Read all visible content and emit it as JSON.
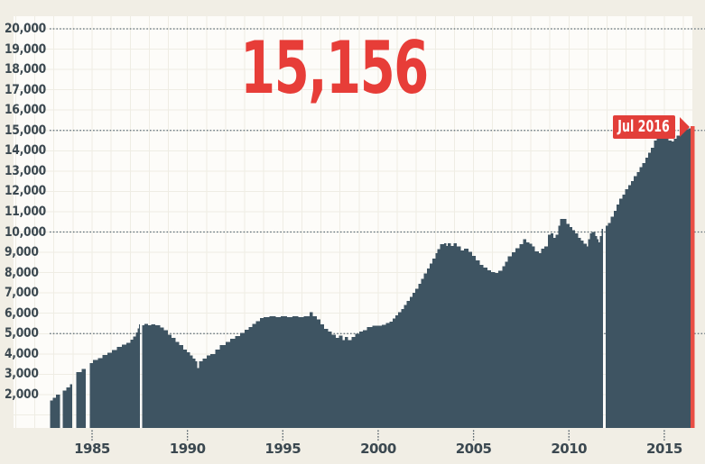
{
  "callout": {
    "value": "15,156",
    "period": "Jul 2016"
  },
  "colors": {
    "background": "#f1eee5",
    "plot_bg": "#fdfcf9",
    "grid": "#efede4",
    "dotted_line": "#5b6b75",
    "tick_dots": "#45535d",
    "axis_text": "#3b4850",
    "bar": "#3e5462",
    "red": "#e73d38",
    "box_red": "#e23e39",
    "red_line": "#e94e45"
  },
  "chart_data": {
    "type": "area",
    "title": "15,156",
    "annotation": "Jul 2016",
    "latest_value": 15156,
    "legend": "none",
    "grid": "on",
    "x_axis": {
      "range_years": [
        1981,
        2016.6
      ],
      "ticks": [
        {
          "year": 1985,
          "label": "1985"
        },
        {
          "year": 1990,
          "label": "1990"
        },
        {
          "year": 1995,
          "label": "1995"
        },
        {
          "year": 2000,
          "label": "2000"
        },
        {
          "year": 2005,
          "label": "2005"
        },
        {
          "year": 2010,
          "label": "2010"
        },
        {
          "year": 2015,
          "label": "2015"
        }
      ]
    },
    "y_axis": {
      "range": [
        0,
        20500
      ],
      "tick_step": 1000,
      "dotted_levels": [
        5000,
        10000,
        15000,
        20000
      ],
      "labels": [
        {
          "value": 2000,
          "label": "2,000"
        },
        {
          "value": 3000,
          "label": "3,000"
        },
        {
          "value": 4000,
          "label": "4,000"
        },
        {
          "value": 5000,
          "label": "5,000"
        },
        {
          "value": 6000,
          "label": "6,000"
        },
        {
          "value": 7000,
          "label": "7,000"
        },
        {
          "value": 8000,
          "label": "8,000"
        },
        {
          "value": 9000,
          "label": "9,000"
        },
        {
          "value": 10000,
          "label": "10,000"
        },
        {
          "value": 11000,
          "label": "11,000"
        },
        {
          "value": 12000,
          "label": "12,000"
        },
        {
          "value": 13000,
          "label": "13,000"
        },
        {
          "value": 14000,
          "label": "14,000"
        },
        {
          "value": 15000,
          "label": "15,000"
        },
        {
          "value": 16000,
          "label": "16,000"
        },
        {
          "value": 17000,
          "label": "17,000"
        },
        {
          "value": 18000,
          "label": "18,000"
        },
        {
          "value": 19000,
          "label": "19,000"
        },
        {
          "value": 20000,
          "label": "20,000"
        }
      ]
    },
    "series": [
      {
        "name": "index-level",
        "points": [
          [
            1982.8,
            1700
          ],
          [
            1982.95,
            1850
          ],
          [
            1983.1,
            2000
          ],
          [
            1983.31,
            null
          ],
          [
            1983.46,
            2200
          ],
          [
            1983.65,
            2350
          ],
          [
            1983.85,
            2500
          ],
          [
            1983.97,
            null
          ],
          [
            1984.16,
            3100
          ],
          [
            1984.45,
            3250
          ],
          [
            1984.68,
            null
          ],
          [
            1984.88,
            3550
          ],
          [
            1985.05,
            3700
          ],
          [
            1985.3,
            3800
          ],
          [
            1985.55,
            3950
          ],
          [
            1985.8,
            4050
          ],
          [
            1986.05,
            4200
          ],
          [
            1986.3,
            4350
          ],
          [
            1986.55,
            4450
          ],
          [
            1986.8,
            4550
          ],
          [
            1987.0,
            4700
          ],
          [
            1987.15,
            4850
          ],
          [
            1987.3,
            5050
          ],
          [
            1987.4,
            5250
          ],
          [
            1987.47,
            5450
          ],
          [
            1987.5,
            null
          ],
          [
            1987.62,
            5400
          ],
          [
            1987.75,
            5470
          ],
          [
            1987.9,
            5400
          ],
          [
            1988.1,
            5450
          ],
          [
            1988.3,
            5400
          ],
          [
            1988.55,
            5300
          ],
          [
            1988.75,
            5170
          ],
          [
            1988.95,
            4950
          ],
          [
            1989.15,
            4800
          ],
          [
            1989.35,
            4590
          ],
          [
            1989.55,
            4440
          ],
          [
            1989.75,
            4220
          ],
          [
            1989.95,
            4070
          ],
          [
            1990.1,
            3920
          ],
          [
            1990.25,
            3780
          ],
          [
            1990.4,
            3630
          ],
          [
            1990.48,
            3300
          ],
          [
            1990.6,
            3630
          ],
          [
            1990.8,
            3780
          ],
          [
            1991.0,
            3920
          ],
          [
            1991.2,
            4000
          ],
          [
            1991.45,
            4220
          ],
          [
            1991.7,
            4440
          ],
          [
            1992.0,
            4590
          ],
          [
            1992.25,
            4740
          ],
          [
            1992.5,
            4880
          ],
          [
            1992.75,
            5030
          ],
          [
            1993.0,
            5180
          ],
          [
            1993.2,
            5330
          ],
          [
            1993.4,
            5470
          ],
          [
            1993.6,
            5620
          ],
          [
            1993.8,
            5770
          ],
          [
            1994.0,
            5810
          ],
          [
            1994.3,
            5850
          ],
          [
            1994.6,
            5810
          ],
          [
            1994.9,
            5860
          ],
          [
            1995.2,
            5810
          ],
          [
            1995.5,
            5850
          ],
          [
            1995.8,
            5800
          ],
          [
            1996.1,
            5850
          ],
          [
            1996.4,
            6050
          ],
          [
            1996.55,
            5850
          ],
          [
            1996.75,
            5700
          ],
          [
            1996.95,
            5450
          ],
          [
            1997.15,
            5240
          ],
          [
            1997.35,
            5090
          ],
          [
            1997.55,
            4940
          ],
          [
            1997.75,
            4790
          ],
          [
            1997.95,
            4890
          ],
          [
            1998.1,
            4680
          ],
          [
            1998.25,
            4830
          ],
          [
            1998.4,
            4680
          ],
          [
            1998.6,
            4830
          ],
          [
            1998.8,
            4980
          ],
          [
            1999.0,
            5090
          ],
          [
            1999.2,
            5160
          ],
          [
            1999.4,
            5330
          ],
          [
            1999.7,
            5380
          ],
          [
            2000.0,
            5380
          ],
          [
            2000.2,
            5440
          ],
          [
            2000.4,
            5510
          ],
          [
            2000.6,
            5580
          ],
          [
            2000.75,
            5750
          ],
          [
            2000.9,
            5900
          ],
          [
            2001.05,
            6050
          ],
          [
            2001.2,
            6200
          ],
          [
            2001.35,
            6400
          ],
          [
            2001.5,
            6600
          ],
          [
            2001.65,
            6800
          ],
          [
            2001.8,
            7000
          ],
          [
            2001.95,
            7200
          ],
          [
            2002.1,
            7450
          ],
          [
            2002.25,
            7700
          ],
          [
            2002.4,
            7950
          ],
          [
            2002.55,
            8200
          ],
          [
            2002.7,
            8450
          ],
          [
            2002.85,
            8700
          ],
          [
            2003.0,
            8950
          ],
          [
            2003.1,
            9150
          ],
          [
            2003.25,
            9400
          ],
          [
            2003.45,
            9450
          ],
          [
            2003.55,
            9320
          ],
          [
            2003.65,
            9450
          ],
          [
            2003.8,
            9320
          ],
          [
            2003.95,
            9450
          ],
          [
            2004.1,
            9300
          ],
          [
            2004.3,
            9100
          ],
          [
            2004.5,
            9170
          ],
          [
            2004.7,
            9020
          ],
          [
            2004.9,
            8830
          ],
          [
            2005.1,
            8610
          ],
          [
            2005.3,
            8390
          ],
          [
            2005.5,
            8240
          ],
          [
            2005.7,
            8120
          ],
          [
            2005.9,
            8020
          ],
          [
            2006.1,
            7980
          ],
          [
            2006.3,
            8100
          ],
          [
            2006.5,
            8320
          ],
          [
            2006.65,
            8540
          ],
          [
            2006.8,
            8800
          ],
          [
            2007.0,
            9010
          ],
          [
            2007.2,
            9200
          ],
          [
            2007.4,
            9400
          ],
          [
            2007.6,
            9650
          ],
          [
            2007.75,
            9500
          ],
          [
            2007.9,
            9420
          ],
          [
            2008.05,
            9280
          ],
          [
            2008.2,
            9050
          ],
          [
            2008.4,
            8950
          ],
          [
            2008.55,
            9170
          ],
          [
            2008.7,
            9300
          ],
          [
            2008.9,
            9870
          ],
          [
            2009.05,
            9940
          ],
          [
            2009.15,
            9720
          ],
          [
            2009.3,
            9870
          ],
          [
            2009.45,
            10300
          ],
          [
            2009.55,
            10650
          ],
          [
            2009.75,
            10650
          ],
          [
            2009.85,
            10390
          ],
          [
            2010.0,
            10240
          ],
          [
            2010.15,
            10090
          ],
          [
            2010.3,
            9940
          ],
          [
            2010.45,
            9720
          ],
          [
            2010.6,
            9570
          ],
          [
            2010.75,
            9430
          ],
          [
            2010.9,
            9280
          ],
          [
            2011.0,
            9650
          ],
          [
            2011.1,
            9940
          ],
          [
            2011.2,
            10010
          ],
          [
            2011.35,
            9790
          ],
          [
            2011.45,
            9650
          ],
          [
            2011.52,
            9500
          ],
          [
            2011.62,
            9790
          ],
          [
            2011.72,
            10160
          ],
          [
            2011.78,
            null
          ],
          [
            2011.94,
            10300
          ],
          [
            2012.05,
            10450
          ],
          [
            2012.2,
            10750
          ],
          [
            2012.35,
            11050
          ],
          [
            2012.5,
            11350
          ],
          [
            2012.65,
            11650
          ],
          [
            2012.8,
            11850
          ],
          [
            2012.95,
            12100
          ],
          [
            2013.1,
            12300
          ],
          [
            2013.25,
            12500
          ],
          [
            2013.4,
            12750
          ],
          [
            2013.55,
            12950
          ],
          [
            2013.7,
            13200
          ],
          [
            2013.85,
            13400
          ],
          [
            2014.0,
            13650
          ],
          [
            2014.15,
            13900
          ],
          [
            2014.3,
            14150
          ],
          [
            2014.45,
            14500
          ],
          [
            2014.6,
            14800
          ],
          [
            2014.75,
            15050
          ],
          [
            2014.9,
            14950
          ],
          [
            2015.05,
            14700
          ],
          [
            2015.2,
            14500
          ],
          [
            2015.35,
            14450
          ],
          [
            2015.5,
            14600
          ],
          [
            2015.65,
            14750
          ],
          [
            2015.8,
            14880
          ],
          [
            2015.95,
            14980
          ],
          [
            2016.1,
            15050
          ],
          [
            2016.25,
            15100
          ],
          [
            2016.38,
            15156
          ],
          [
            2016.45,
            15156
          ]
        ]
      }
    ]
  }
}
